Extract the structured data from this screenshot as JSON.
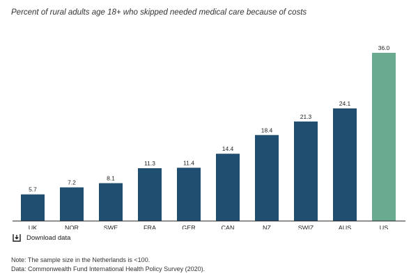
{
  "subtitle": "Percent of rural adults age 18+ who skipped needed medical care because of costs",
  "download_label": "Download data",
  "notes": [
    "Note: The sample size in the Netherlands is <100.",
    "Data: Commonwealth Fund International Health Policy Survey (2020)."
  ],
  "colors": {
    "bar": "#1f4e70",
    "highlight": "#6aaa91",
    "axis": "#222222",
    "label": "#222222"
  },
  "chart_data": {
    "type": "bar",
    "title": "",
    "xlabel": "",
    "ylabel": "",
    "categories": [
      "UK",
      "NOR",
      "SWE",
      "FRA",
      "GER",
      "CAN",
      "NZ",
      "SWIZ",
      "AUS",
      "US"
    ],
    "values": [
      5.7,
      7.2,
      8.1,
      11.3,
      11.4,
      14.4,
      18.4,
      21.3,
      24.1,
      36.0
    ],
    "value_labels": [
      "5.7",
      "7.2",
      "8.1",
      "11.3",
      "11.4",
      "14.4",
      "18.4",
      "21.3",
      "24.1",
      "36.0"
    ],
    "highlight_category": "US",
    "ylim": [
      0,
      36
    ],
    "grid": false,
    "legend": "none"
  }
}
